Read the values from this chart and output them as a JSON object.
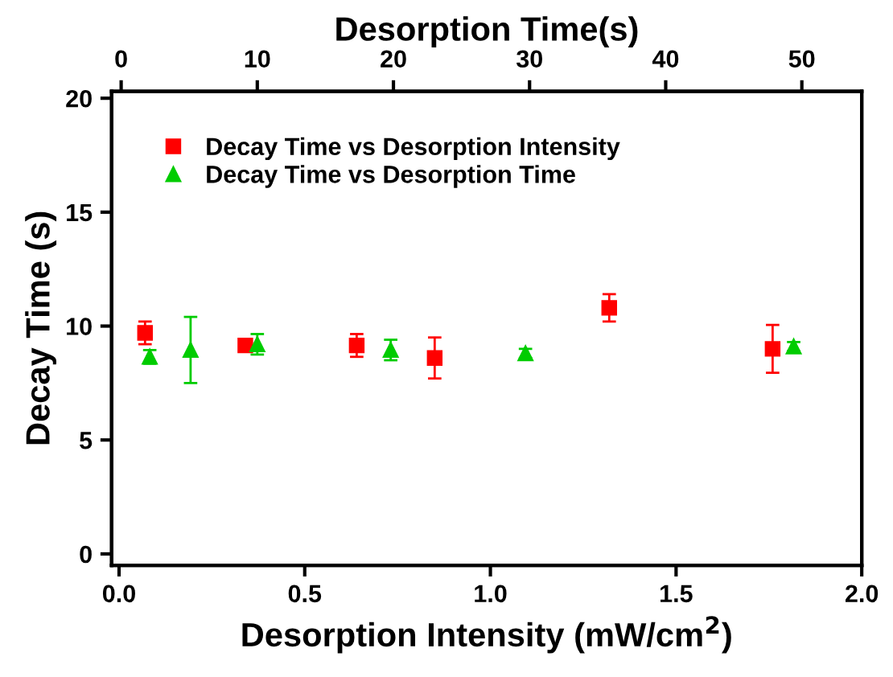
{
  "chart_data": {
    "type": "scatter",
    "xlabel": "Desorption Intensity (mW/cm$^{2}$)",
    "ylabel": "Decay Time (s)",
    "x2label": "Desorption Time(s)",
    "xlim": [
      -0.02,
      2.0
    ],
    "xticks": [
      {
        "value": 0,
        "label": "0.0"
      },
      0.5,
      {
        "value": 1,
        "label": "1.0"
      },
      1.5,
      {
        "value": 2,
        "label": "2.0"
      }
    ],
    "x2lim": [
      -0.7,
      54.4
    ],
    "x2ticks": [
      0,
      10,
      20,
      30,
      40,
      50
    ],
    "ylim": [
      -0.5,
      20.3
    ],
    "yticks": [
      0,
      5,
      10,
      15,
      20
    ],
    "grid": false,
    "legend": "top left",
    "series": [
      {
        "name": "Decay Time vs Desorption Intensity",
        "color": "#ff0000",
        "marker": "square",
        "x": [
          0.07,
          0.34,
          0.64,
          0.85,
          1.32,
          1.76
        ],
        "values": [
          9.7,
          9.15,
          9.15,
          8.6,
          10.8,
          9.0
        ],
        "errors": [
          0.5,
          0.2,
          0.5,
          0.9,
          0.6,
          1.05
        ]
      },
      {
        "name": "Decay Time vs Desorption Time",
        "color": "#00cc00",
        "marker": "triangle",
        "axis": "x2",
        "x": [
          2.1,
          5.1,
          10.0,
          19.8,
          29.7,
          49.4
        ],
        "values": [
          8.65,
          8.95,
          9.2,
          8.95,
          8.8,
          9.1
        ],
        "errors": [
          0.3,
          1.45,
          0.45,
          0.45,
          0.2,
          0.2
        ]
      }
    ]
  }
}
